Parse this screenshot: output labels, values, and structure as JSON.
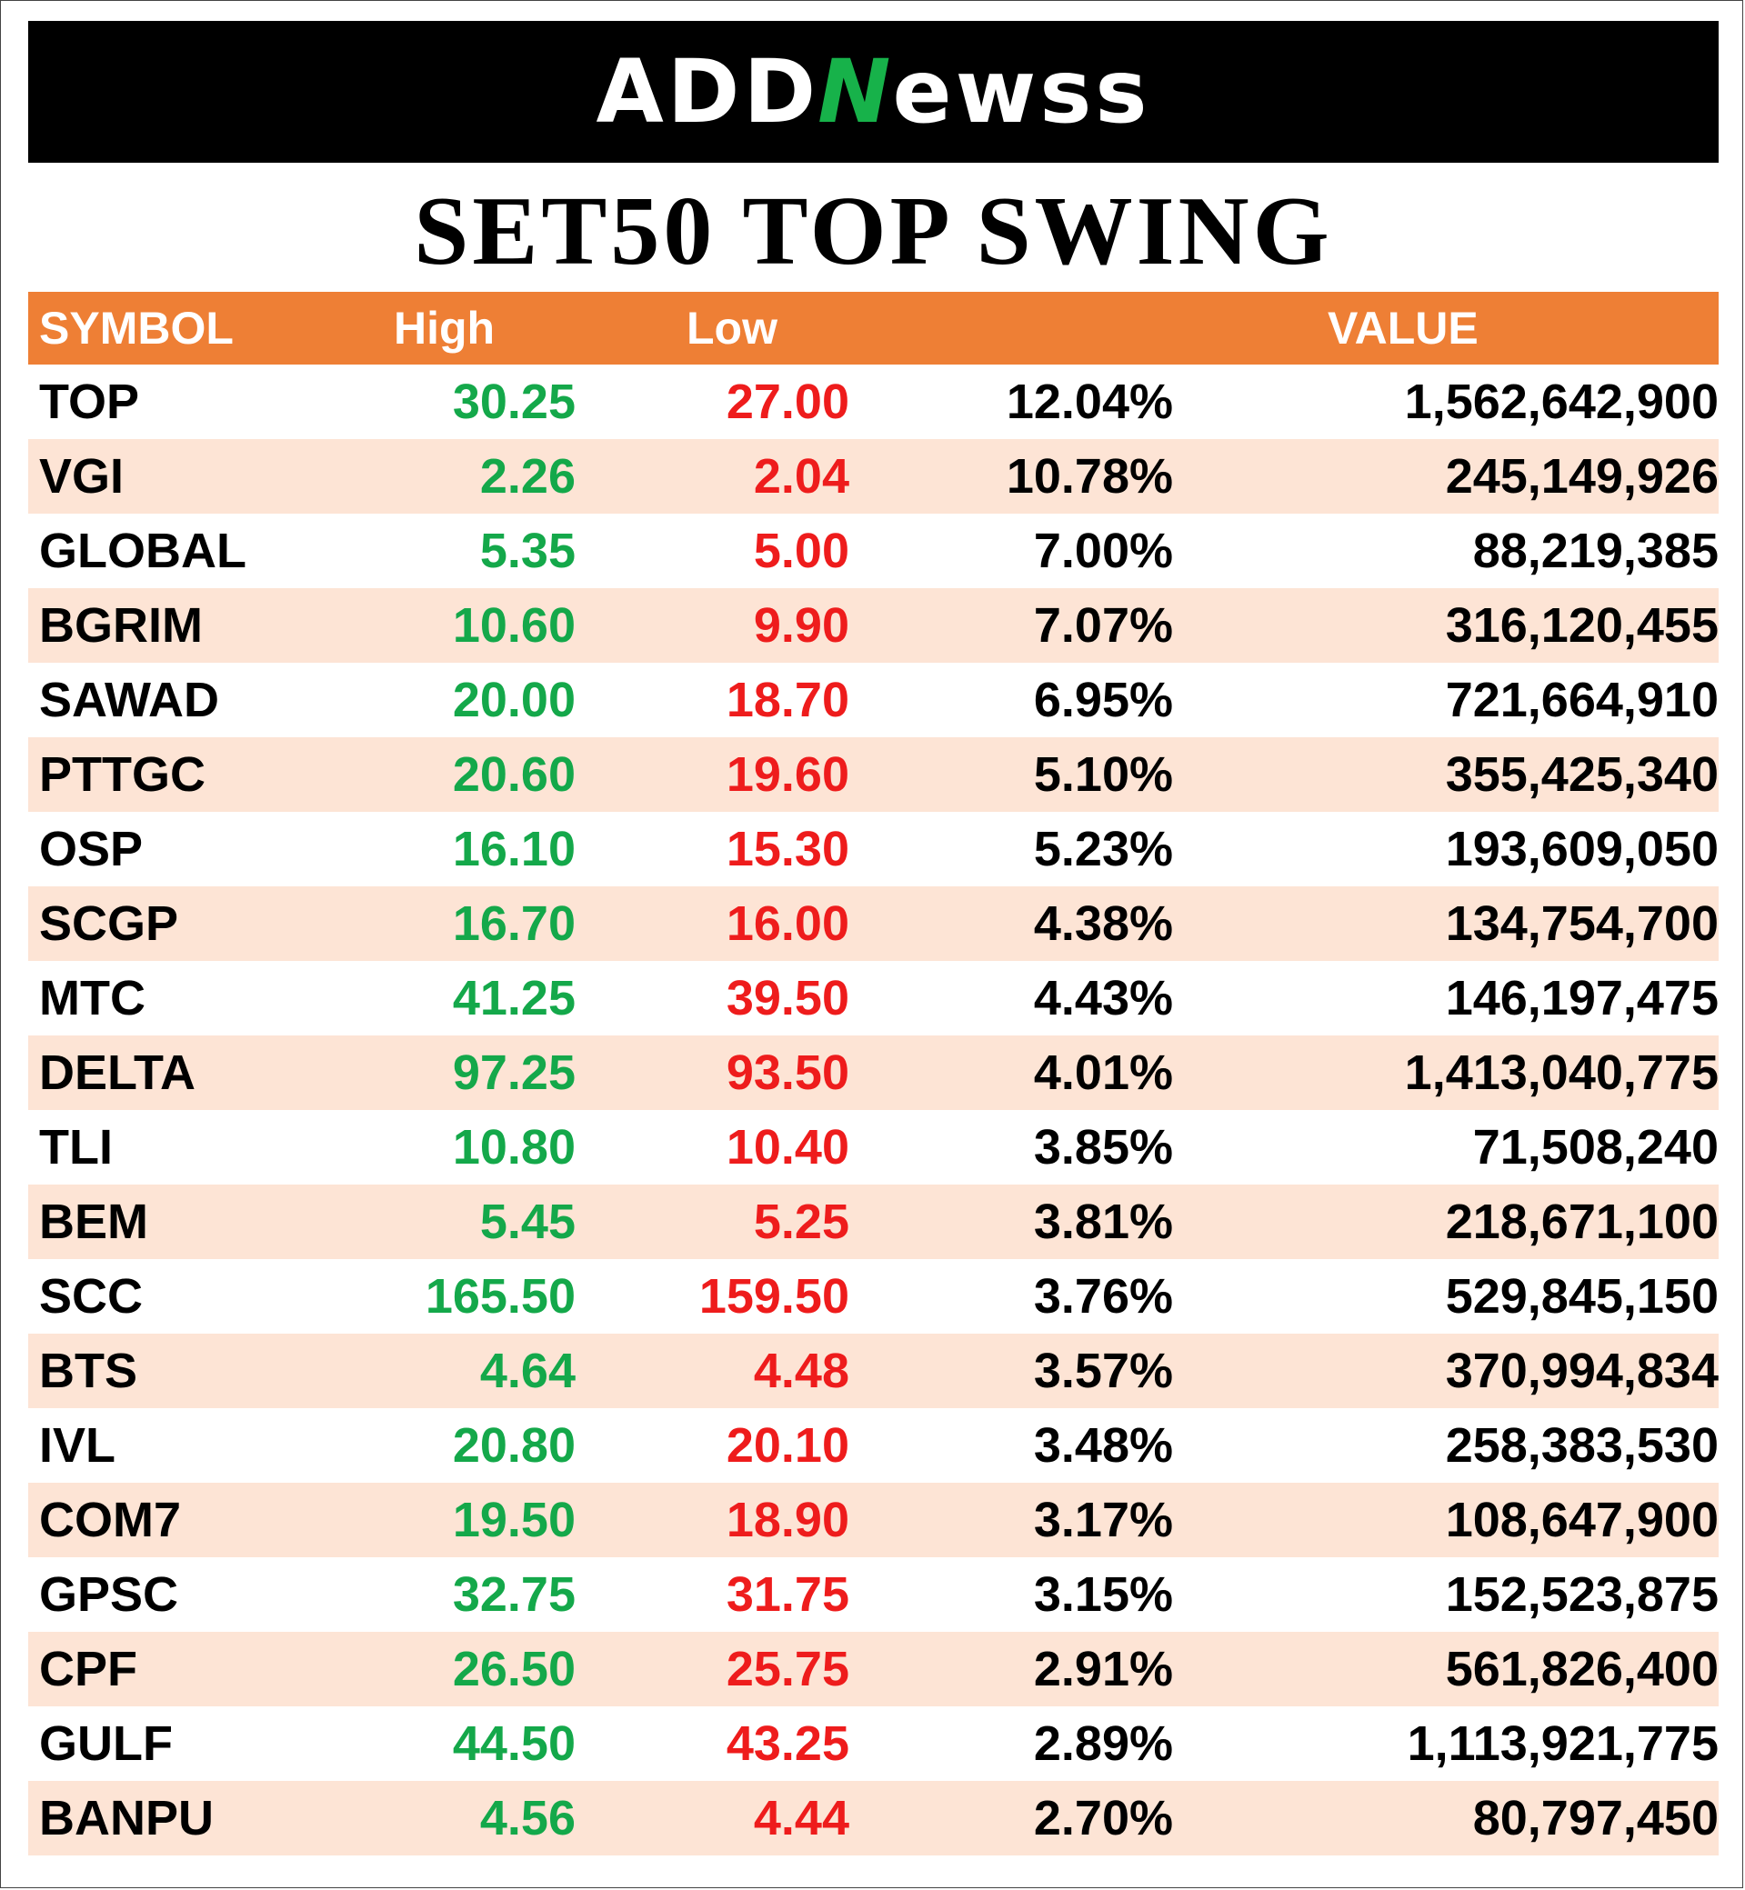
{
  "logo": {
    "text_a": "ADD",
    "text_n": "N",
    "text_b": "ewss"
  },
  "title": "SET50 TOP SWING",
  "columns": {
    "symbol": "SYMBOL",
    "high": "High",
    "low": "Low",
    "pct": "",
    "value": "VALUE"
  },
  "colors": {
    "header": "#ee7f35",
    "alt_row": "#fde4d5",
    "high": "#14a84a",
    "low": "#ee1c1c"
  },
  "rows": [
    {
      "symbol": "TOP",
      "high": "30.25",
      "low": "27.00",
      "pct": "12.04%",
      "value": "1,562,642,900"
    },
    {
      "symbol": "VGI",
      "high": "2.26",
      "low": "2.04",
      "pct": "10.78%",
      "value": "245,149,926"
    },
    {
      "symbol": "GLOBAL",
      "high": "5.35",
      "low": "5.00",
      "pct": "7.00%",
      "value": "88,219,385"
    },
    {
      "symbol": "BGRIM",
      "high": "10.60",
      "low": "9.90",
      "pct": "7.07%",
      "value": "316,120,455"
    },
    {
      "symbol": "SAWAD",
      "high": "20.00",
      "low": "18.70",
      "pct": "6.95%",
      "value": "721,664,910"
    },
    {
      "symbol": "PTTGC",
      "high": "20.60",
      "low": "19.60",
      "pct": "5.10%",
      "value": "355,425,340"
    },
    {
      "symbol": "OSP",
      "high": "16.10",
      "low": "15.30",
      "pct": "5.23%",
      "value": "193,609,050"
    },
    {
      "symbol": "SCGP",
      "high": "16.70",
      "low": "16.00",
      "pct": "4.38%",
      "value": "134,754,700"
    },
    {
      "symbol": "MTC",
      "high": "41.25",
      "low": "39.50",
      "pct": "4.43%",
      "value": "146,197,475"
    },
    {
      "symbol": "DELTA",
      "high": "97.25",
      "low": "93.50",
      "pct": "4.01%",
      "value": "1,413,040,775"
    },
    {
      "symbol": "TLI",
      "high": "10.80",
      "low": "10.40",
      "pct": "3.85%",
      "value": "71,508,240"
    },
    {
      "symbol": "BEM",
      "high": "5.45",
      "low": "5.25",
      "pct": "3.81%",
      "value": "218,671,100"
    },
    {
      "symbol": "SCC",
      "high": "165.50",
      "low": "159.50",
      "pct": "3.76%",
      "value": "529,845,150"
    },
    {
      "symbol": "BTS",
      "high": "4.64",
      "low": "4.48",
      "pct": "3.57%",
      "value": "370,994,834"
    },
    {
      "symbol": "IVL",
      "high": "20.80",
      "low": "20.10",
      "pct": "3.48%",
      "value": "258,383,530"
    },
    {
      "symbol": "COM7",
      "high": "19.50",
      "low": "18.90",
      "pct": "3.17%",
      "value": "108,647,900"
    },
    {
      "symbol": "GPSC",
      "high": "32.75",
      "low": "31.75",
      "pct": "3.15%",
      "value": "152,523,875"
    },
    {
      "symbol": "CPF",
      "high": "26.50",
      "low": "25.75",
      "pct": "2.91%",
      "value": "561,826,400"
    },
    {
      "symbol": "GULF",
      "high": "44.50",
      "low": "43.25",
      "pct": "2.89%",
      "value": "1,113,921,775"
    },
    {
      "symbol": "BANPU",
      "high": "4.56",
      "low": "4.44",
      "pct": "2.70%",
      "value": "80,797,450"
    }
  ]
}
